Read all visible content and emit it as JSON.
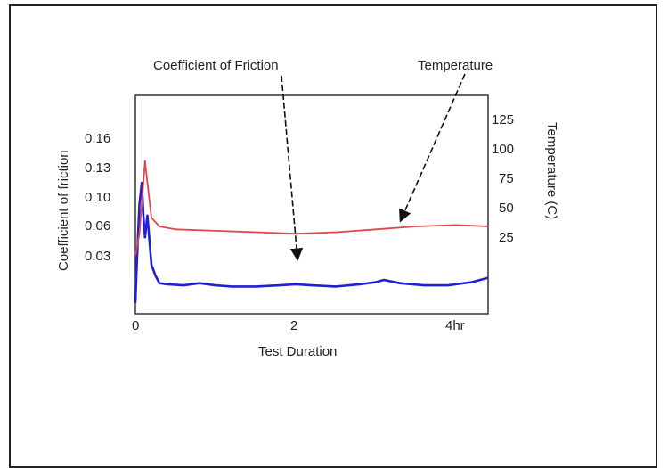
{
  "chart_data": {
    "type": "line",
    "annotations": [
      "Coefficient of Friction",
      "Temperature"
    ],
    "xlabel": "Test Duration",
    "x_ticks": [
      "0",
      "2",
      "4hr"
    ],
    "xlim": [
      0,
      4.4
    ],
    "ylabel_left": "Coefficient of friction",
    "y_ticks_left": [
      "0.16",
      "0.13",
      "0.10",
      "0.06",
      "0.03"
    ],
    "ylim_left": [
      0,
      0.2
    ],
    "ylabel_right": "Temperature (C)",
    "y_ticks_right": [
      "125",
      "100",
      "75",
      "50",
      "25"
    ],
    "ylim_right": [
      0,
      150
    ],
    "grid": false,
    "colors": {
      "friction": "#1f1fd6",
      "temperature": "#e0474c"
    },
    "series": [
      {
        "axis": "left",
        "values": [
          [
            0,
            0.01
          ],
          [
            0.02,
            0.05
          ],
          [
            0.05,
            0.1
          ],
          [
            0.08,
            0.12
          ],
          [
            0.1,
            0.09
          ],
          [
            0.12,
            0.07
          ],
          [
            0.15,
            0.09
          ],
          [
            0.2,
            0.045
          ],
          [
            0.25,
            0.035
          ],
          [
            0.3,
            0.028
          ],
          [
            0.4,
            0.027
          ],
          [
            0.6,
            0.026
          ],
          [
            0.8,
            0.028
          ],
          [
            1.0,
            0.026
          ],
          [
            1.2,
            0.025
          ],
          [
            1.5,
            0.025
          ],
          [
            1.8,
            0.026
          ],
          [
            2.0,
            0.027
          ],
          [
            2.2,
            0.026
          ],
          [
            2.5,
            0.025
          ],
          [
            2.8,
            0.027
          ],
          [
            3.0,
            0.029
          ],
          [
            3.1,
            0.031
          ],
          [
            3.3,
            0.028
          ],
          [
            3.6,
            0.026
          ],
          [
            3.9,
            0.026
          ],
          [
            4.2,
            0.029
          ],
          [
            4.4,
            0.033
          ]
        ]
      },
      {
        "axis": "right",
        "values": [
          [
            0,
            40
          ],
          [
            0.05,
            55
          ],
          [
            0.1,
            90
          ],
          [
            0.12,
            105
          ],
          [
            0.15,
            90
          ],
          [
            0.2,
            66
          ],
          [
            0.3,
            60
          ],
          [
            0.5,
            58
          ],
          [
            1.0,
            57
          ],
          [
            1.5,
            56
          ],
          [
            2.0,
            55
          ],
          [
            2.5,
            56
          ],
          [
            3.0,
            58
          ],
          [
            3.5,
            60
          ],
          [
            4.0,
            61
          ],
          [
            4.4,
            60
          ]
        ]
      }
    ]
  }
}
